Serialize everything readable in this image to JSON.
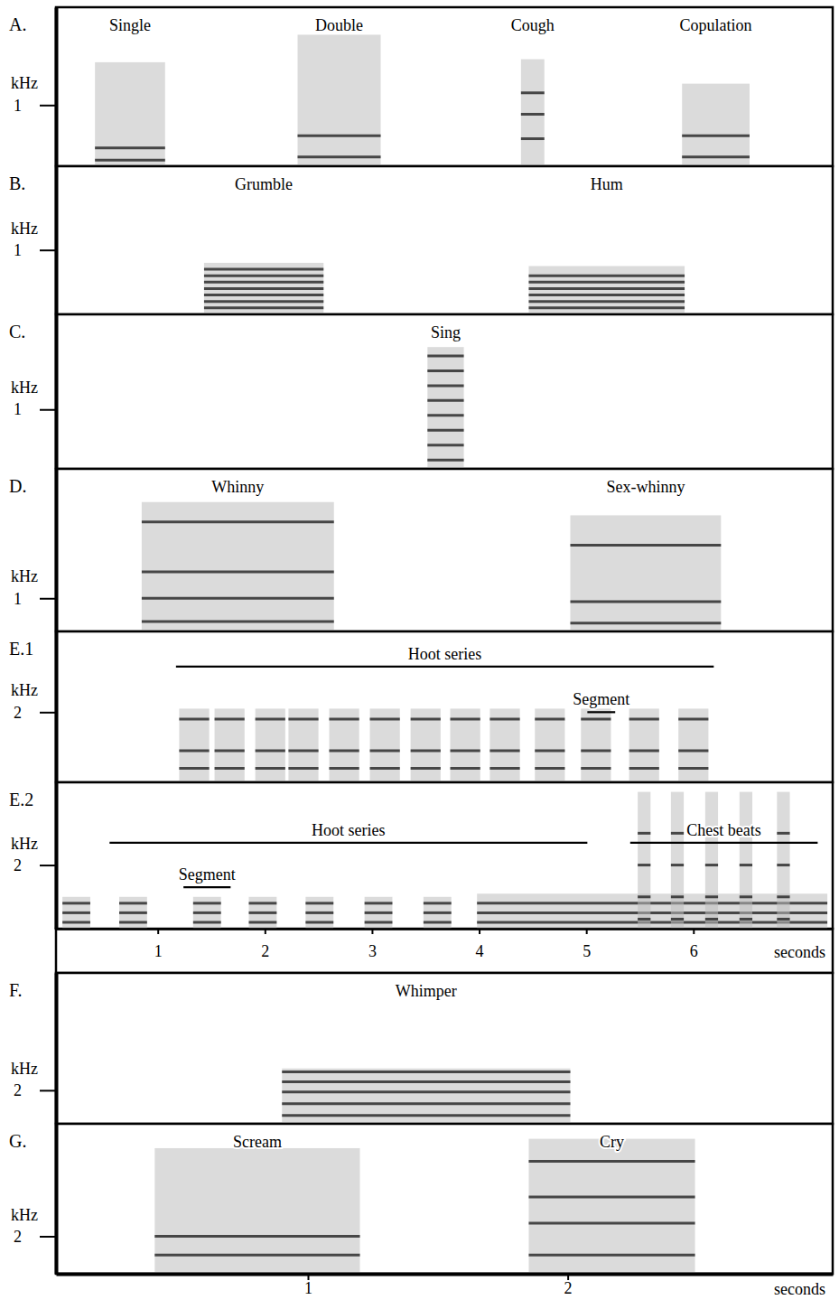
{
  "chart_data": [
    {
      "type": "spectrogram",
      "panel": "A.",
      "ylabel": "kHz",
      "ylim": [
        0,
        2.6
      ],
      "yticks": [
        1
      ],
      "xlim": [
        0.03,
        3.02
      ],
      "calls": [
        {
          "label": "Single",
          "start": 0.18,
          "end": 0.45,
          "fmax": 1.7,
          "harmonics": [
            0.1,
            0.3
          ]
        },
        {
          "label": "Double",
          "start": 0.96,
          "end": 1.28,
          "fmax": 2.15,
          "harmonics": [
            0.15,
            0.5
          ]
        },
        {
          "label": "Cough",
          "start": 1.82,
          "end": 1.91,
          "fmax": 1.75,
          "harmonics": [
            0.45,
            0.85,
            1.2
          ]
        },
        {
          "label": "Copulation",
          "start": 2.44,
          "end": 2.7,
          "fmax": 1.35,
          "harmonics": [
            0.15,
            0.5
          ]
        }
      ]
    },
    {
      "type": "spectrogram",
      "panel": "B.",
      "ylabel": "kHz",
      "ylim": [
        0,
        2.3
      ],
      "yticks": [
        1
      ],
      "xlim": [
        0.03,
        3.02
      ],
      "calls": [
        {
          "label": "Grumble",
          "start": 0.6,
          "end": 1.06,
          "fmax": 0.8,
          "harmonics": [
            0.1,
            0.2,
            0.3,
            0.4,
            0.5,
            0.6,
            0.7
          ]
        },
        {
          "label": "Hum",
          "start": 1.85,
          "end": 2.45,
          "fmax": 0.75,
          "harmonics": [
            0.1,
            0.2,
            0.3,
            0.4,
            0.5,
            0.6
          ]
        }
      ]
    },
    {
      "type": "spectrogram",
      "panel": "C.",
      "ylabel": "kHz",
      "ylim": [
        0,
        2.6
      ],
      "yticks": [
        1
      ],
      "xlim": [
        0.03,
        3.02
      ],
      "calls": [
        {
          "label": "Sing",
          "start": 1.46,
          "end": 1.6,
          "fmax": 2.05,
          "harmonics": [
            0.15,
            0.4,
            0.65,
            0.9,
            1.15,
            1.4,
            1.65,
            1.9
          ]
        }
      ]
    },
    {
      "type": "spectrogram",
      "panel": "D.",
      "ylabel": "kHz",
      "ylim": [
        0,
        4.9
      ],
      "yticks": [
        1
      ],
      "xlim": [
        0.03,
        3.02
      ],
      "calls": [
        {
          "label": "Whinny",
          "start": 0.36,
          "end": 1.1,
          "fmax": 3.9,
          "harmonics": [
            0.3,
            1.0,
            1.8,
            3.3
          ]
        },
        {
          "label": "Sex-whinny",
          "start": 2.01,
          "end": 2.59,
          "fmax": 3.5,
          "harmonics": [
            0.25,
            0.9,
            2.6
          ]
        }
      ]
    },
    {
      "type": "spectrogram",
      "panel": "E.1",
      "ylabel": "kHz",
      "ylim": [
        0,
        4.3
      ],
      "yticks": [
        2
      ],
      "xlim": [
        0.05,
        7.3
      ],
      "annotations": [
        {
          "text": "Hoot series",
          "start": 1.17,
          "end": 6.19,
          "freq": 3.3
        },
        {
          "text": "Segment",
          "start": 5.01,
          "end": 5.27,
          "freq": 2.0
        }
      ],
      "calls": [
        {
          "start": 1.2,
          "end": 1.48,
          "fmax": 2.1,
          "harmonics": [
            0.4,
            0.9,
            1.8
          ]
        },
        {
          "start": 1.53,
          "end": 1.81,
          "fmax": 2.1,
          "harmonics": [
            0.4,
            0.9,
            1.8
          ]
        },
        {
          "start": 1.91,
          "end": 2.19,
          "fmax": 2.1,
          "harmonics": [
            0.4,
            0.9,
            1.8
          ]
        },
        {
          "start": 2.22,
          "end": 2.5,
          "fmax": 2.1,
          "harmonics": [
            0.4,
            0.9,
            1.8
          ]
        },
        {
          "start": 2.6,
          "end": 2.88,
          "fmax": 2.1,
          "harmonics": [
            0.4,
            0.9,
            1.8
          ]
        },
        {
          "start": 2.98,
          "end": 3.26,
          "fmax": 2.1,
          "harmonics": [
            0.4,
            0.9,
            1.8
          ]
        },
        {
          "start": 3.36,
          "end": 3.64,
          "fmax": 2.1,
          "harmonics": [
            0.4,
            0.9,
            1.8
          ]
        },
        {
          "start": 3.73,
          "end": 4.01,
          "fmax": 2.1,
          "harmonics": [
            0.4,
            0.9,
            1.8
          ]
        },
        {
          "start": 4.1,
          "end": 4.38,
          "fmax": 2.1,
          "harmonics": [
            0.4,
            0.9,
            1.8
          ]
        },
        {
          "start": 4.52,
          "end": 4.8,
          "fmax": 2.1,
          "harmonics": [
            0.4,
            0.9,
            1.8
          ]
        },
        {
          "start": 4.95,
          "end": 5.23,
          "fmax": 2.1,
          "harmonics": [
            0.4,
            0.9,
            1.8
          ]
        },
        {
          "start": 5.4,
          "end": 5.68,
          "fmax": 2.1,
          "harmonics": [
            0.4,
            0.9,
            1.8
          ]
        },
        {
          "start": 5.86,
          "end": 6.14,
          "fmax": 2.1,
          "harmonics": [
            0.4,
            0.9,
            1.8
          ]
        }
      ]
    },
    {
      "type": "spectrogram",
      "panel": "E.2",
      "ylabel": "kHz",
      "ylim": [
        0,
        4.6
      ],
      "yticks": [
        2
      ],
      "xlim": [
        0.05,
        7.3
      ],
      "xlabel": "seconds",
      "xticks": [
        1,
        2,
        3,
        4,
        5,
        6
      ],
      "annotations": [
        {
          "text": "Hoot series",
          "start": 0.55,
          "end": 5.01,
          "freq": 2.7
        },
        {
          "text": "Segment",
          "start": 1.24,
          "end": 1.68,
          "freq": 1.3
        },
        {
          "text": "Chest beats",
          "start": 5.41,
          "end": 7.16,
          "freq": 2.7
        }
      ],
      "calls": [
        {
          "start": 0.11,
          "end": 0.37,
          "fmax": 1.0,
          "harmonics": [
            0.2,
            0.5,
            0.8
          ]
        },
        {
          "start": 0.64,
          "end": 0.9,
          "fmax": 1.0,
          "harmonics": [
            0.2,
            0.5,
            0.8
          ]
        },
        {
          "start": 1.33,
          "end": 1.59,
          "fmax": 1.0,
          "harmonics": [
            0.2,
            0.5,
            0.8
          ]
        },
        {
          "start": 1.85,
          "end": 2.11,
          "fmax": 1.0,
          "harmonics": [
            0.2,
            0.5,
            0.8
          ]
        },
        {
          "start": 2.38,
          "end": 2.64,
          "fmax": 1.0,
          "harmonics": [
            0.2,
            0.5,
            0.8
          ]
        },
        {
          "start": 2.93,
          "end": 3.19,
          "fmax": 1.0,
          "harmonics": [
            0.2,
            0.5,
            0.8
          ]
        },
        {
          "start": 3.48,
          "end": 3.74,
          "fmax": 1.0,
          "harmonics": [
            0.2,
            0.5,
            0.8
          ]
        },
        {
          "start": 3.98,
          "end": 7.25,
          "fmax": 1.1,
          "harmonics": [
            0.2,
            0.5,
            0.8
          ]
        },
        {
          "start": 5.48,
          "end": 5.6,
          "fmax": 4.3,
          "harmonics": [
            0.3,
            1.0,
            2.0,
            3.0
          ]
        },
        {
          "start": 5.79,
          "end": 5.91,
          "fmax": 4.3,
          "harmonics": [
            0.3,
            1.0,
            2.0,
            3.0
          ]
        },
        {
          "start": 6.11,
          "end": 6.23,
          "fmax": 4.3,
          "harmonics": [
            0.3,
            1.0,
            2.0,
            3.0
          ]
        },
        {
          "start": 6.43,
          "end": 6.55,
          "fmax": 4.3,
          "harmonics": [
            0.3,
            1.0,
            2.0,
            3.0
          ]
        },
        {
          "start": 6.78,
          "end": 6.9,
          "fmax": 4.3,
          "harmonics": [
            0.3,
            1.0,
            2.0,
            3.0
          ]
        }
      ]
    },
    {
      "type": "spectrogram",
      "panel": "F.",
      "ylabel": "kHz",
      "ylim": [
        0,
        9
      ],
      "yticks": [
        2
      ],
      "xlim": [
        0.03,
        3.02
      ],
      "calls": [
        {
          "label": "Whimper",
          "start": 0.9,
          "end": 2.01,
          "fmax": 3.3,
          "harmonics": [
            0.5,
            1.2,
            1.9,
            2.5,
            3.1
          ]
        }
      ]
    },
    {
      "type": "spectrogram",
      "panel": "G.",
      "ylabel": "kHz",
      "ylim": [
        0,
        8
      ],
      "yticks": [
        2
      ],
      "xlim": [
        0.03,
        3.02
      ],
      "xlabel": "seconds",
      "xticks": [
        1,
        2
      ],
      "calls": [
        {
          "label": "Scream",
          "start": 0.41,
          "end": 1.2,
          "fmax": 6.7,
          "harmonics": [
            1.0,
            2.0
          ]
        },
        {
          "label": "Cry",
          "start": 1.85,
          "end": 2.49,
          "fmax": 7.2,
          "harmonics": [
            1.0,
            2.7,
            4.1,
            6.0
          ]
        }
      ]
    }
  ]
}
